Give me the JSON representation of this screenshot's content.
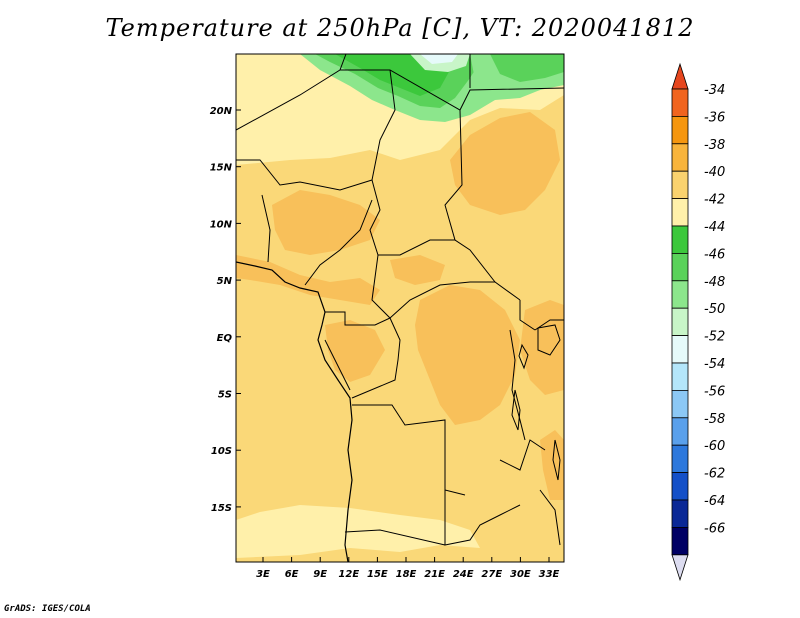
{
  "title": "Temperature at 250hPa [C], VT: 2020041812",
  "credit": "GrADS: IGES/COLA",
  "lat_labels": [
    "20N",
    "15N",
    "10N",
    "5N",
    "EQ",
    "5S",
    "10S",
    "15S"
  ],
  "lon_labels": [
    "3E",
    "6E",
    "9E",
    "12E",
    "15E",
    "18E",
    "21E",
    "24E",
    "27E",
    "30E",
    "33E"
  ],
  "colorbar": {
    "labels": [
      "-34",
      "-36",
      "-38",
      "-40",
      "-42",
      "-44",
      "-46",
      "-48",
      "-50",
      "-52",
      "-54",
      "-56",
      "-58",
      "-60",
      "-62",
      "-64",
      "-66"
    ],
    "colors": [
      "#f0641e",
      "#f5960f",
      "#f8b43c",
      "#fad26e",
      "#fff0aa",
      "#3cc83c",
      "#5ad25a",
      "#8ce68c",
      "#c8f5c8",
      "#e6fafa",
      "#b4e6fa",
      "#8cc8f5",
      "#5aa0eb",
      "#2d78dc",
      "#1450c8",
      "#0a2896",
      "#000064"
    ],
    "top_color": "#e6461e",
    "bottom_color": "#dcdcf0"
  },
  "map": {
    "colors": {
      "base": "#fad878",
      "light": "#fff0aa",
      "warm": "#f8c05a",
      "green_dark": "#3cc83c",
      "green_mid": "#5ad25a",
      "green_light": "#8ce68c",
      "green_pale": "#c8f5c8",
      "cyan_pale": "#e6fafa"
    }
  }
}
